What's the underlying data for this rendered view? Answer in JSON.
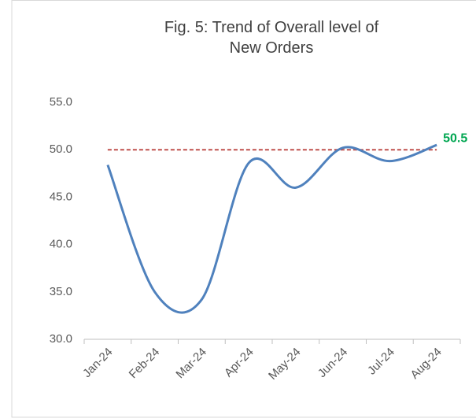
{
  "chart_data": {
    "type": "line",
    "title": "Fig. 5: Trend of Overall level of New Orders",
    "categories": [
      "Jan-24",
      "Feb-24",
      "Mar-24",
      "Apr-24",
      "May-24",
      "Jun-24",
      "Jul-24",
      "Aug-24"
    ],
    "series": [
      {
        "name": "New Orders",
        "color": "#4f81bd",
        "values": [
          48.4,
          35.0,
          34.2,
          48.6,
          46.0,
          50.2,
          48.8,
          50.5
        ]
      }
    ],
    "ylim": [
      30,
      55
    ],
    "yticks": [
      {
        "value": 30,
        "label": "30.0"
      },
      {
        "value": 35,
        "label": "35.0"
      },
      {
        "value": 40,
        "label": "40.0"
      },
      {
        "value": 45,
        "label": "45.0"
      },
      {
        "value": 50,
        "label": "50.0"
      },
      {
        "value": 55,
        "label": "55.0"
      }
    ],
    "reference_line": {
      "value": 50,
      "color": "#c0504d"
    },
    "value_label_color": "#00a651",
    "grid": false
  }
}
